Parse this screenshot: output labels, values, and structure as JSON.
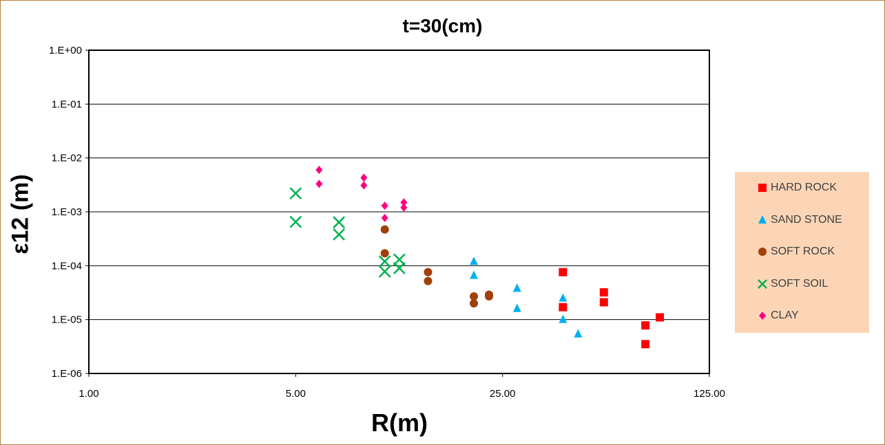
{
  "chart_data": {
    "type": "scatter",
    "title": "t=30(cm)",
    "xlabel": "R(m)",
    "ylabel": "ε12 (m)",
    "x_scale": "log",
    "y_scale": "log",
    "xlim": [
      1,
      125
    ],
    "ylim": [
      1e-06,
      1
    ],
    "x_ticks": [
      1,
      5,
      25,
      125
    ],
    "x_tick_labels": [
      "1.00",
      "5.00",
      "25.00",
      "125.00"
    ],
    "y_ticks": [
      1e-06,
      1e-05,
      0.0001,
      0.001,
      0.01,
      0.1,
      1
    ],
    "y_tick_labels": [
      "1.E-06",
      "1.E-05",
      "1.E-04",
      "1.E-03",
      "1.E-02",
      "1.E-01",
      "1.E+00"
    ],
    "grid": "horizontal major gridlines",
    "legend_position": "right",
    "series": [
      {
        "name": "HARD ROCK",
        "marker": "square",
        "color": "#ff0000",
        "points": [
          [
            40,
            7.6e-05
          ],
          [
            40,
            1.7e-05
          ],
          [
            55,
            3.2e-05
          ],
          [
            55,
            2.1e-05
          ],
          [
            76,
            7.8e-06
          ],
          [
            76,
            3.5e-06
          ],
          [
            85,
            1.1e-05
          ]
        ]
      },
      {
        "name": "SAND STONE",
        "marker": "triangle",
        "color": "#00b0f0",
        "points": [
          [
            20,
            0.00012
          ],
          [
            20,
            6.6e-05
          ],
          [
            28,
            3.8e-05
          ],
          [
            28,
            1.6e-05
          ],
          [
            40,
            2.5e-05
          ],
          [
            40,
            1e-05
          ],
          [
            45,
            5.4e-06
          ]
        ]
      },
      {
        "name": "SOFT ROCK",
        "marker": "circle",
        "color": "#a0400a",
        "points": [
          [
            10,
            0.00047
          ],
          [
            10,
            0.00017
          ],
          [
            14,
            7.6e-05
          ],
          [
            14,
            5.2e-05
          ],
          [
            20,
            2.7e-05
          ],
          [
            20,
            2e-05
          ],
          [
            22.5,
            2.9e-05
          ],
          [
            22.5,
            2.7e-05
          ]
        ]
      },
      {
        "name": "SOFT SOIL",
        "marker": "x",
        "color": "#00b050",
        "points": [
          [
            5,
            0.0022
          ],
          [
            5,
            0.00065
          ],
          [
            7,
            0.00064
          ],
          [
            7,
            0.00038
          ],
          [
            10,
            0.00012
          ],
          [
            10,
            7.8e-05
          ],
          [
            11.2,
            0.00013
          ],
          [
            11.2,
            9e-05
          ]
        ]
      },
      {
        "name": "CLAY",
        "marker": "diamond",
        "color": "#ff0080",
        "points": [
          [
            6,
            0.006
          ],
          [
            6,
            0.0033
          ],
          [
            8.5,
            0.0043
          ],
          [
            8.5,
            0.0031
          ],
          [
            10,
            0.0013
          ],
          [
            10,
            0.00077
          ],
          [
            11.6,
            0.0015
          ],
          [
            11.6,
            0.0012
          ]
        ]
      }
    ]
  }
}
